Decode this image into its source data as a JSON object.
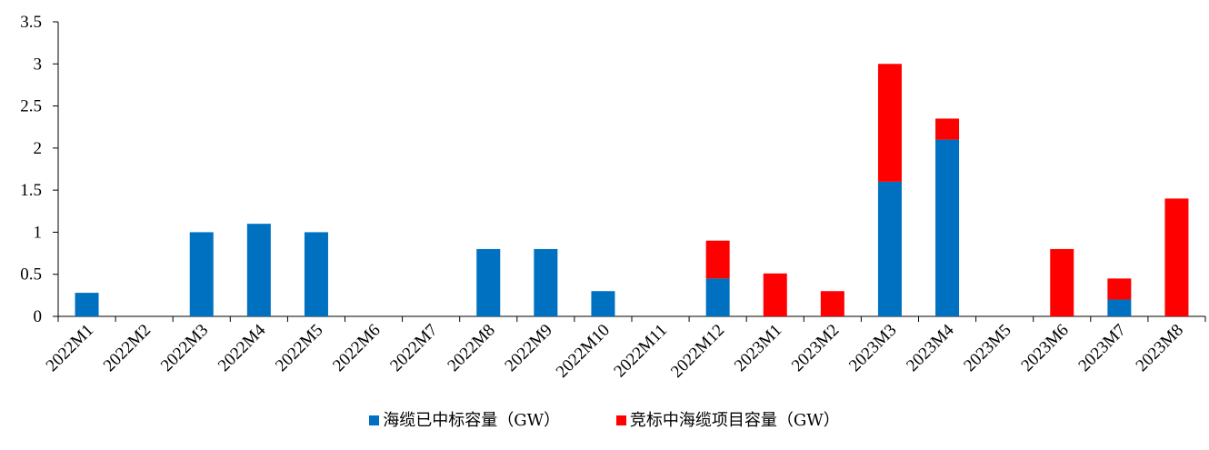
{
  "chart_data": {
    "type": "bar",
    "stacked": true,
    "categories": [
      "2022M1",
      "2022M2",
      "2022M3",
      "2022M4",
      "2022M5",
      "2022M6",
      "2022M7",
      "2022M8",
      "2022M9",
      "2022M10",
      "2022M11",
      "2022M12",
      "2023M1",
      "2023M2",
      "2023M3",
      "2023M4",
      "2023M5",
      "2023M6",
      "2023M7",
      "2023M8"
    ],
    "series": [
      {
        "name": "海缆已中标容量（GW）",
        "color": "#0070C0",
        "values": [
          0.28,
          0,
          1.0,
          1.1,
          1.0,
          0,
          0,
          0.8,
          0.8,
          0.3,
          0,
          0.45,
          0,
          0,
          1.6,
          2.1,
          0,
          0,
          0.2,
          0
        ]
      },
      {
        "name": "竞标中海缆项目容量（GW）",
        "color": "#FF0000",
        "values": [
          0,
          0,
          0,
          0,
          0,
          0,
          0,
          0,
          0,
          0,
          0,
          0.45,
          0.51,
          0.3,
          1.4,
          0.25,
          0,
          0.8,
          0.25,
          1.4
        ]
      }
    ],
    "yticks": [
      "0",
      "0.5",
      "1",
      "1.5",
      "2",
      "2.5",
      "3",
      "3.5"
    ],
    "ylim": [
      0,
      3.5
    ],
    "legend_position": "bottom",
    "grid": false
  }
}
